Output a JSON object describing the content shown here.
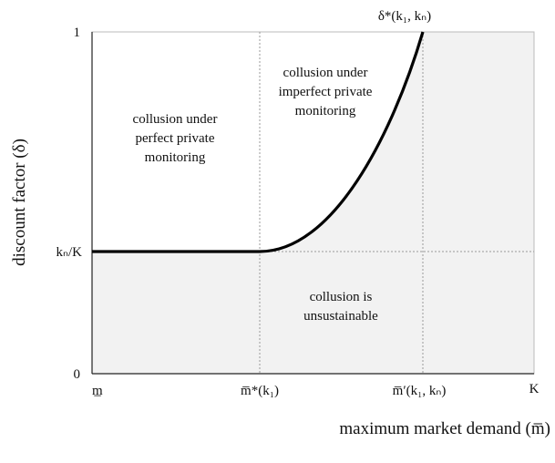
{
  "axes": {
    "y_label": "discount factor (δ)",
    "x_label": "maximum market demand (m̅)",
    "y_ticks": [
      "1",
      "kₙ/K",
      "0"
    ],
    "x_ticks": [
      "m̲",
      "m̅*(k₁)",
      "m̅′(k₁, kₙ)",
      "K"
    ]
  },
  "curve_label": "δ*(k₁, kₙ)",
  "regions": [
    {
      "lines": [
        "collusion under",
        "perfect  private",
        "monitoring"
      ]
    },
    {
      "lines": [
        "collusion under",
        "imperfect private",
        "monitoring"
      ]
    },
    {
      "lines": [
        "collusion is",
        "unsustainable"
      ]
    }
  ]
}
